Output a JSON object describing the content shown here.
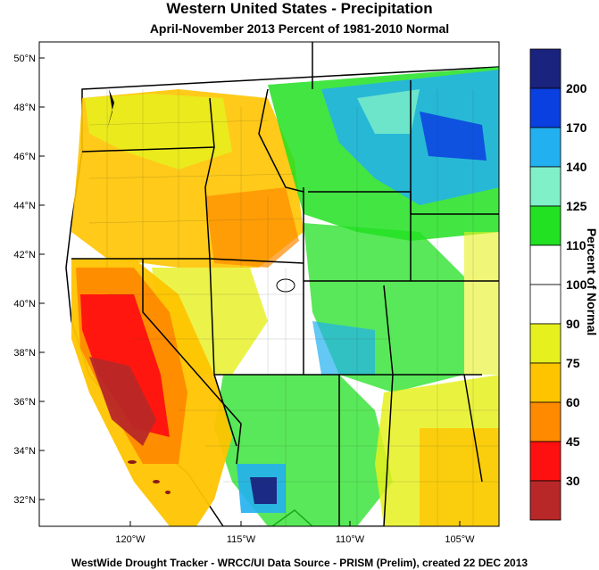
{
  "header": {
    "title": "Western United States - Precipitation",
    "subtitle": "April-November 2013  Percent of 1981-2010 Normal"
  },
  "footer": "WestWide Drought Tracker - WRCC/UI  Data Source - PRISM (Prelim), created 22 DEC 2013",
  "latitude_labels": [
    "50°N",
    "48°N",
    "46°N",
    "44°N",
    "42°N",
    "40°N",
    "38°N",
    "36°N",
    "34°N",
    "32°N"
  ],
  "longitude_labels": [
    "120°W",
    "115°W",
    "110°W",
    "105°W"
  ],
  "colorbar": {
    "title": "Percent of Normal",
    "bins": [
      {
        "color": "#1a237e",
        "label": "200"
      },
      {
        "color": "#0a3fe0",
        "label": "170"
      },
      {
        "color": "#22b0f0",
        "label": "140"
      },
      {
        "color": "#7ff0c8",
        "label": "125"
      },
      {
        "color": "#22e022",
        "label": "110"
      },
      {
        "color": "#ffffff",
        "label": "100"
      },
      {
        "color": "#ffffff",
        "label": "90"
      },
      {
        "color": "#e6f01e",
        "label": "75"
      },
      {
        "color": "#ffc400",
        "label": "60"
      },
      {
        "color": "#ff8a00",
        "label": "45"
      },
      {
        "color": "#ff1010",
        "label": "30"
      },
      {
        "color": "#b82828",
        "label": ""
      }
    ]
  }
}
